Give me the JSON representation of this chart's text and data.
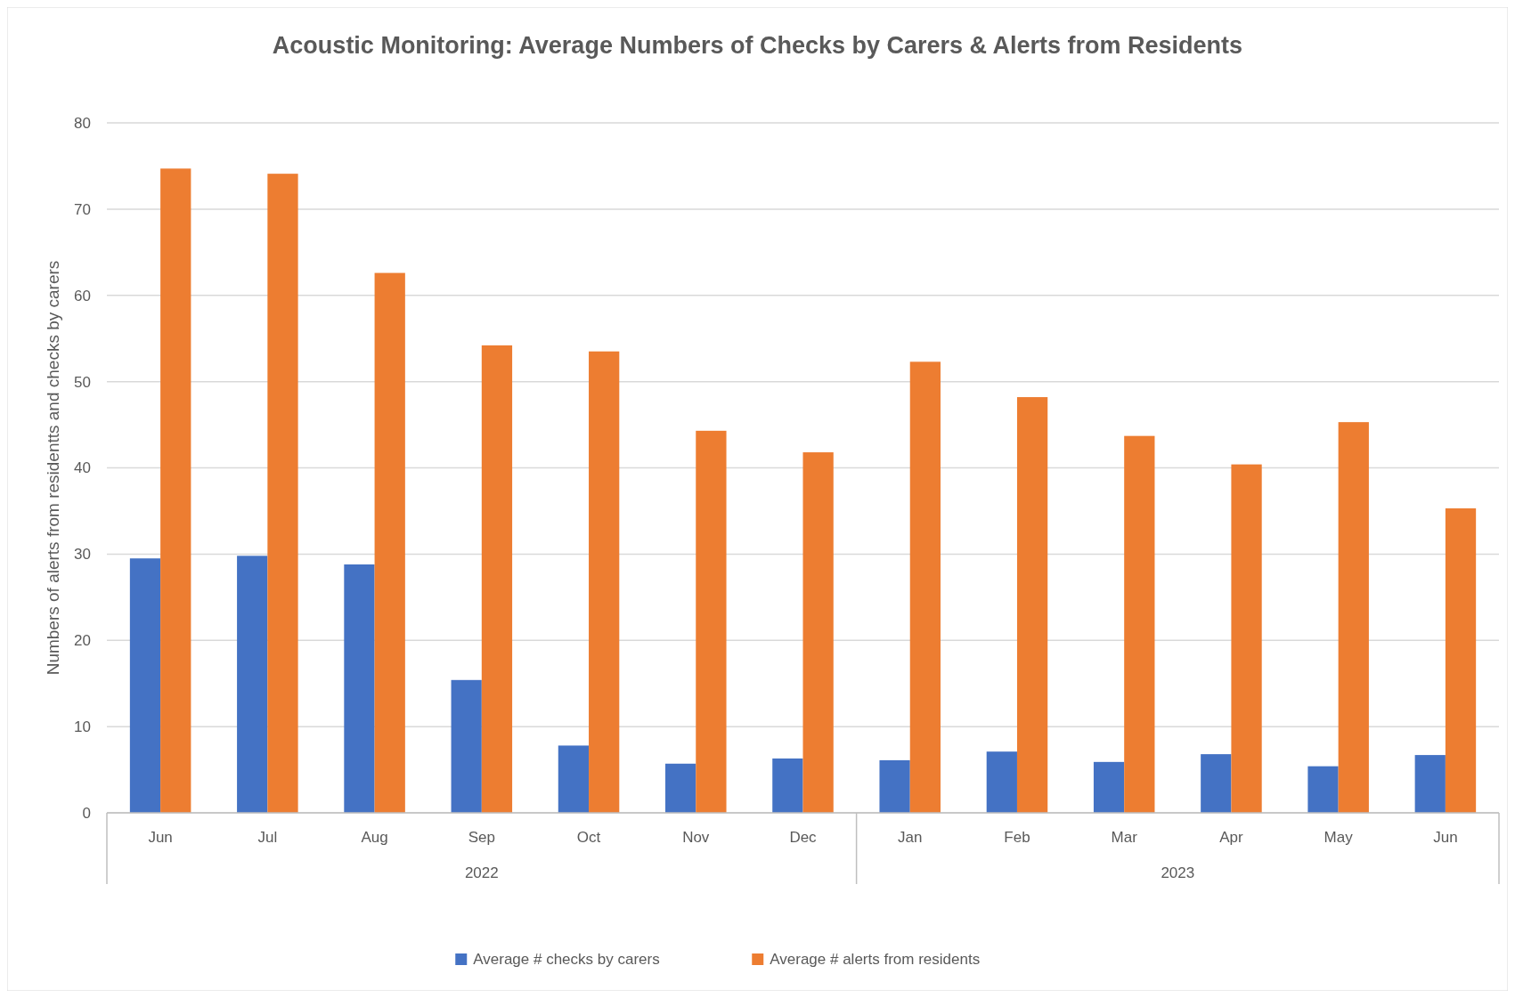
{
  "chart_data": {
    "type": "bar",
    "title": "Acoustic Monitoring: Average Numbers of Checks by Carers & Alerts from Residents",
    "ylabel": "Numbers of alerts from residentts and checks by carers",
    "categories": [
      "Jun",
      "Jul",
      "Aug",
      "Sep",
      "Oct",
      "Nov",
      "Dec",
      "Jan",
      "Feb",
      "Mar",
      "Apr",
      "May",
      "Jun"
    ],
    "series": [
      {
        "name": "Average # checks by carers",
        "color": "#4472c4",
        "values": [
          29.5,
          29.8,
          28.8,
          15.4,
          7.8,
          5.7,
          6.3,
          6.1,
          7.1,
          5.9,
          6.8,
          5.4,
          6.7
        ]
      },
      {
        "name": "Average # alerts from residents",
        "color": "#ed7d31",
        "values": [
          74.7,
          74.1,
          62.6,
          54.2,
          53.5,
          44.3,
          41.8,
          52.3,
          48.2,
          43.7,
          40.4,
          45.3,
          35.3
        ]
      }
    ],
    "annotations": [
      "2022",
      "2023"
    ],
    "ylim": [
      0,
      80
    ],
    "yticks": [
      0,
      10,
      20,
      30,
      40,
      50,
      60,
      70,
      80
    ],
    "grid": "y",
    "legend": "bottom"
  }
}
